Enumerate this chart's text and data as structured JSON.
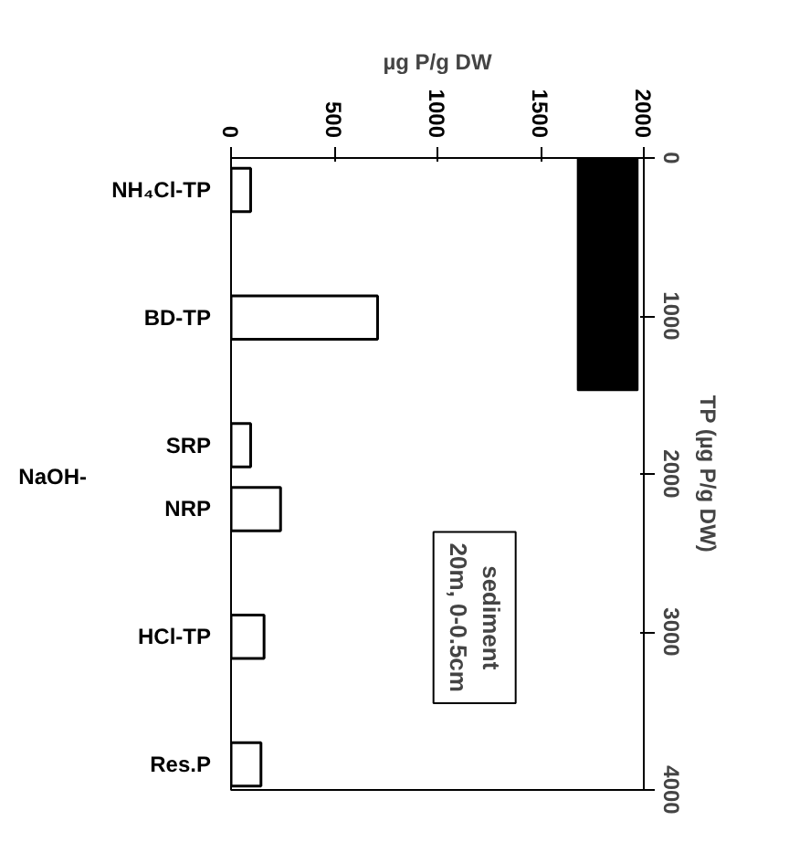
{
  "chart_data": {
    "type": "bar",
    "orientation": "horizontal",
    "xlabel": "µg P/g DW",
    "y2label": "TP (µg P/g DW)",
    "categories": [
      "NH₄Cl-TP",
      null,
      "BD-TP",
      null,
      "SRP",
      "NRP",
      null,
      "HCl-TP",
      null,
      "Res.P"
    ],
    "series": [
      {
        "color": "#ffffff",
        "values": [
          95,
          null,
          710,
          null,
          95,
          240,
          null,
          160,
          null,
          145
        ]
      }
    ],
    "bands": [
      {
        "axis": "y2",
        "from": 0,
        "to": 1470,
        "color": "#000000"
      }
    ],
    "xlim": [
      0,
      2000
    ],
    "xticks": [
      0,
      500,
      1000,
      1500,
      2000
    ],
    "y2lim": [
      4000,
      0
    ],
    "y2ticks": [
      0,
      1000,
      2000,
      3000,
      4000
    ],
    "annotations": [
      "NaOH-",
      "sediment\n20m, 0-0.5cm"
    ],
    "grid": false
  }
}
